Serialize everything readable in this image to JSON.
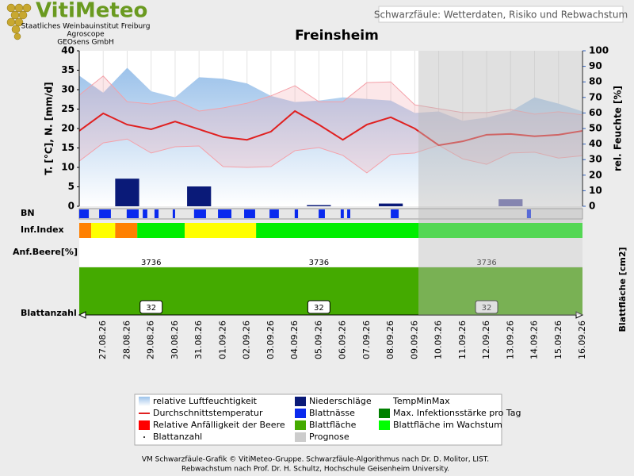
{
  "header": {
    "logo": "VitiMeteo",
    "org": [
      "Staatliches Weinbauinstitut Freiburg",
      "Agroscope",
      "GEOsens GmbH"
    ],
    "subtitle": "Schwarzfäule: Wetterdaten, Risiko und Rebwachstum"
  },
  "chart_data": {
    "type": "line",
    "title": "Freinsheim",
    "categories": [
      null,
      "27.08.26",
      "28.08.26",
      "29.08.26",
      "30.08.26",
      "31.08.26",
      "01.09.26",
      "02.09.26",
      "03.09.26",
      "04.09.26",
      "05.09.26",
      "06.09.26",
      "07.09.26",
      "08.09.26",
      "09.09.26",
      "10.09.26",
      "11.09.26",
      "12.09.26",
      "13.09.26",
      "14.09.26",
      "15.09.26",
      "16.09.26"
    ],
    "ylabel": "T. [°C], N. [mm/d]",
    "y2label": "rel. Feuchte [%]",
    "ylim": [
      0,
      40
    ],
    "yticks": [
      0,
      5,
      10,
      15,
      20,
      25,
      30,
      35,
      40
    ],
    "y2lim": [
      0,
      100
    ],
    "y2ticks": [
      0,
      10,
      20,
      30,
      40,
      50,
      60,
      70,
      80,
      90,
      100
    ],
    "grid": true,
    "series": [
      {
        "kind": "area",
        "axis": "y2",
        "color": "#9cc2ea",
        "values": [
          84,
          73,
          89,
          74,
          70,
          83,
          82,
          79,
          71,
          67,
          68,
          70,
          69,
          68,
          60,
          61,
          55,
          57,
          61,
          70,
          66,
          61
        ]
      },
      {
        "kind": "band",
        "color": "#f4a0a8",
        "high": [
          28.6,
          33.5,
          26.9,
          26.3,
          27.3,
          24.5,
          25.3,
          26.5,
          28.4,
          31,
          26.9,
          26.9,
          31.8,
          32,
          26.1,
          25.1,
          24.1,
          24.1,
          24.9,
          23.7,
          24.3,
          23.5
        ],
        "low": [
          11.6,
          16.3,
          17.3,
          13.7,
          15.3,
          15.5,
          10.2,
          10,
          10.2,
          14.3,
          15.1,
          13.1,
          8.6,
          13.3,
          13.7,
          15.7,
          12.2,
          10.8,
          13.7,
          13.9,
          12.4,
          13
        ]
      },
      {
        "kind": "bar",
        "color": "#0a1a78",
        "forecast_color": "#5a5aa8",
        "values": [
          0,
          0,
          7.1,
          0,
          0,
          5.1,
          0,
          0,
          0,
          0,
          0.3,
          0,
          0,
          0.7,
          0,
          0,
          0,
          0,
          1.8,
          0,
          0,
          0
        ]
      },
      {
        "kind": "line",
        "color": "#e02020",
        "values": [
          19.4,
          23.9,
          21,
          19.8,
          21.8,
          19.8,
          17.8,
          17.1,
          19.2,
          24.5,
          21,
          17.1,
          21,
          22.9,
          20,
          15.7,
          16.7,
          18.4,
          18.6,
          18,
          18.4,
          19.4
        ]
      }
    ]
  },
  "rows": {
    "bn": "BN",
    "inf": "Inf.Index",
    "beere": "Anf.Beere[%]",
    "blattanzahl": "Blattanzahl",
    "blattflaeche_label": "Blattfläche [cm2]"
  },
  "bn": {
    "color": "#0a2aee",
    "intervals": [
      [
        0,
        0.4
      ],
      [
        0.83,
        1.32
      ],
      [
        1.98,
        2.48
      ],
      [
        2.65,
        2.84
      ],
      [
        3.14,
        3.31
      ],
      [
        3.9,
        4.0
      ],
      [
        4.79,
        5.29
      ],
      [
        5.79,
        6.35
      ],
      [
        6.88,
        7.34
      ],
      [
        7.94,
        8.33
      ],
      [
        8.99,
        9.13
      ],
      [
        9.99,
        10.25
      ],
      [
        10.91,
        11.04
      ],
      [
        11.18,
        11.31
      ],
      [
        13.0,
        13.33
      ],
      [
        18.68,
        18.85
      ]
    ]
  },
  "inf_index": [
    {
      "from": 0,
      "to": 0.5,
      "color": "#ff8000"
    },
    {
      "from": 0.5,
      "to": 1.5,
      "color": "#ffff00"
    },
    {
      "from": 1.5,
      "to": 2.42,
      "color": "#ff8000"
    },
    {
      "from": 2.42,
      "to": 4.4,
      "color": "#00ee00"
    },
    {
      "from": 4.4,
      "to": 7.38,
      "color": "#ffff00"
    },
    {
      "from": 7.38,
      "to": 21,
      "color": "#00ee00"
    }
  ],
  "leaf_area": {
    "value": 3736,
    "color": "#44aa00"
  },
  "leaf_count": 32,
  "legend": [
    {
      "name": "relative Luftfeuchtigkeit",
      "color": "#9cc2ea"
    },
    {
      "name": "Durchschnittstemperatur",
      "color": "#e02020",
      "marker": "line"
    },
    {
      "name": "Relative Anfälligkeit der Beere",
      "color": "#ff0000"
    },
    {
      "name": "Blattanzahl",
      "color": "#000000",
      "marker": "dot"
    },
    {
      "name": "Niederschläge",
      "color": "#0a1a78"
    },
    {
      "name": "Blattnässe",
      "color": "#0a2aee"
    },
    {
      "name": "Blattfläche",
      "color": "#44aa00"
    },
    {
      "name": "Prognose",
      "color": "#cccccc"
    },
    {
      "name": "TempMinMax"
    },
    {
      "name": "Max. Infektionsstärke pro Tag",
      "color": "#008000"
    },
    {
      "name": "Blattfläche im Wachstum",
      "color": "#00ff00"
    }
  ],
  "footer": [
    "VM Schwarzfäule-Grafik © VitiMeteo-Gruppe. Schwarzfäule-Algorithmus nach Dr. D. Molitor, LIST.",
    "Rebwachstum nach Prof. Dr. H. Schultz, Hochschule Geisenheim University."
  ]
}
